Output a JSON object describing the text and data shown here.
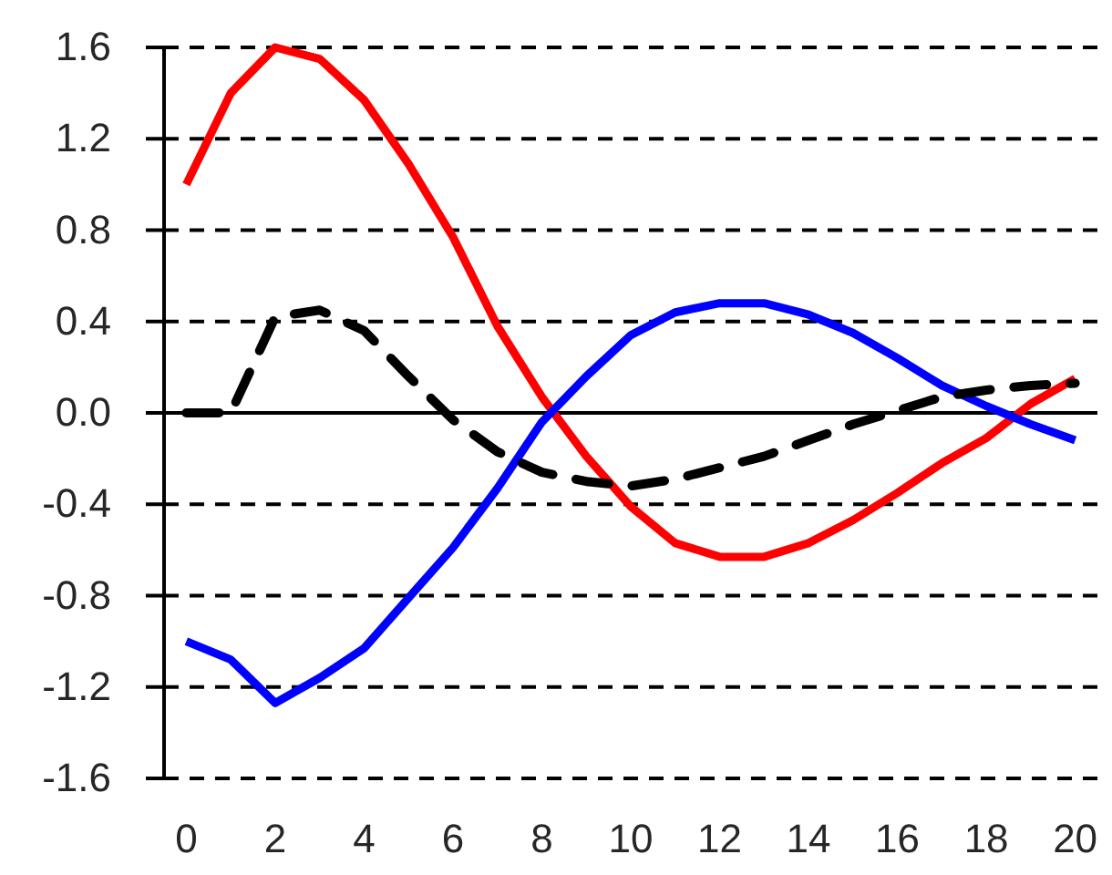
{
  "chart_data": {
    "type": "line",
    "x": [
      0,
      1,
      2,
      3,
      4,
      5,
      6,
      7,
      8,
      9,
      10,
      11,
      12,
      13,
      14,
      15,
      16,
      17,
      18,
      19,
      20
    ],
    "xlim": [
      -0.5,
      20.5
    ],
    "xticks": [
      0,
      2,
      4,
      6,
      8,
      10,
      12,
      14,
      16,
      18,
      20
    ],
    "ylim": [
      -1.6,
      1.6
    ],
    "yticks": [
      -1.6,
      -1.2,
      -0.8,
      -0.4,
      {
        "value": 0,
        "label": "0.0"
      },
      0.4,
      0.8,
      1.2,
      1.6
    ],
    "grid": "y",
    "ref_lines": [
      {
        "axis": "y",
        "value": 0,
        "color": "#000000",
        "line_style": "solid"
      }
    ],
    "series": [
      {
        "color": "#ff0000",
        "line_style": "solid",
        "values": [
          1.0,
          1.4,
          1.6,
          1.55,
          1.37,
          1.09,
          0.77,
          0.38,
          0.07,
          -0.19,
          -0.41,
          -0.57,
          -0.63,
          -0.63,
          -0.57,
          -0.47,
          -0.35,
          -0.22,
          -0.11,
          0.04,
          0.15
        ]
      },
      {
        "color": "#0000ff",
        "line_style": "solid",
        "values": [
          -1.0,
          -1.08,
          -1.27,
          -1.16,
          -1.03,
          -0.81,
          -0.59,
          -0.33,
          -0.04,
          0.16,
          0.34,
          0.44,
          0.48,
          0.48,
          0.43,
          0.35,
          0.24,
          0.12,
          0.03,
          -0.05,
          -0.12
        ]
      },
      {
        "color": "#000000",
        "line_style": "dashed",
        "values": [
          0,
          0,
          0.42,
          0.45,
          0.36,
          0.16,
          -0.03,
          -0.17,
          -0.26,
          -0.3,
          -0.32,
          -0.29,
          -0.24,
          -0.19,
          -0.12,
          -0.05,
          0.01,
          0.07,
          0.1,
          0.12,
          0.13
        ]
      }
    ]
  }
}
